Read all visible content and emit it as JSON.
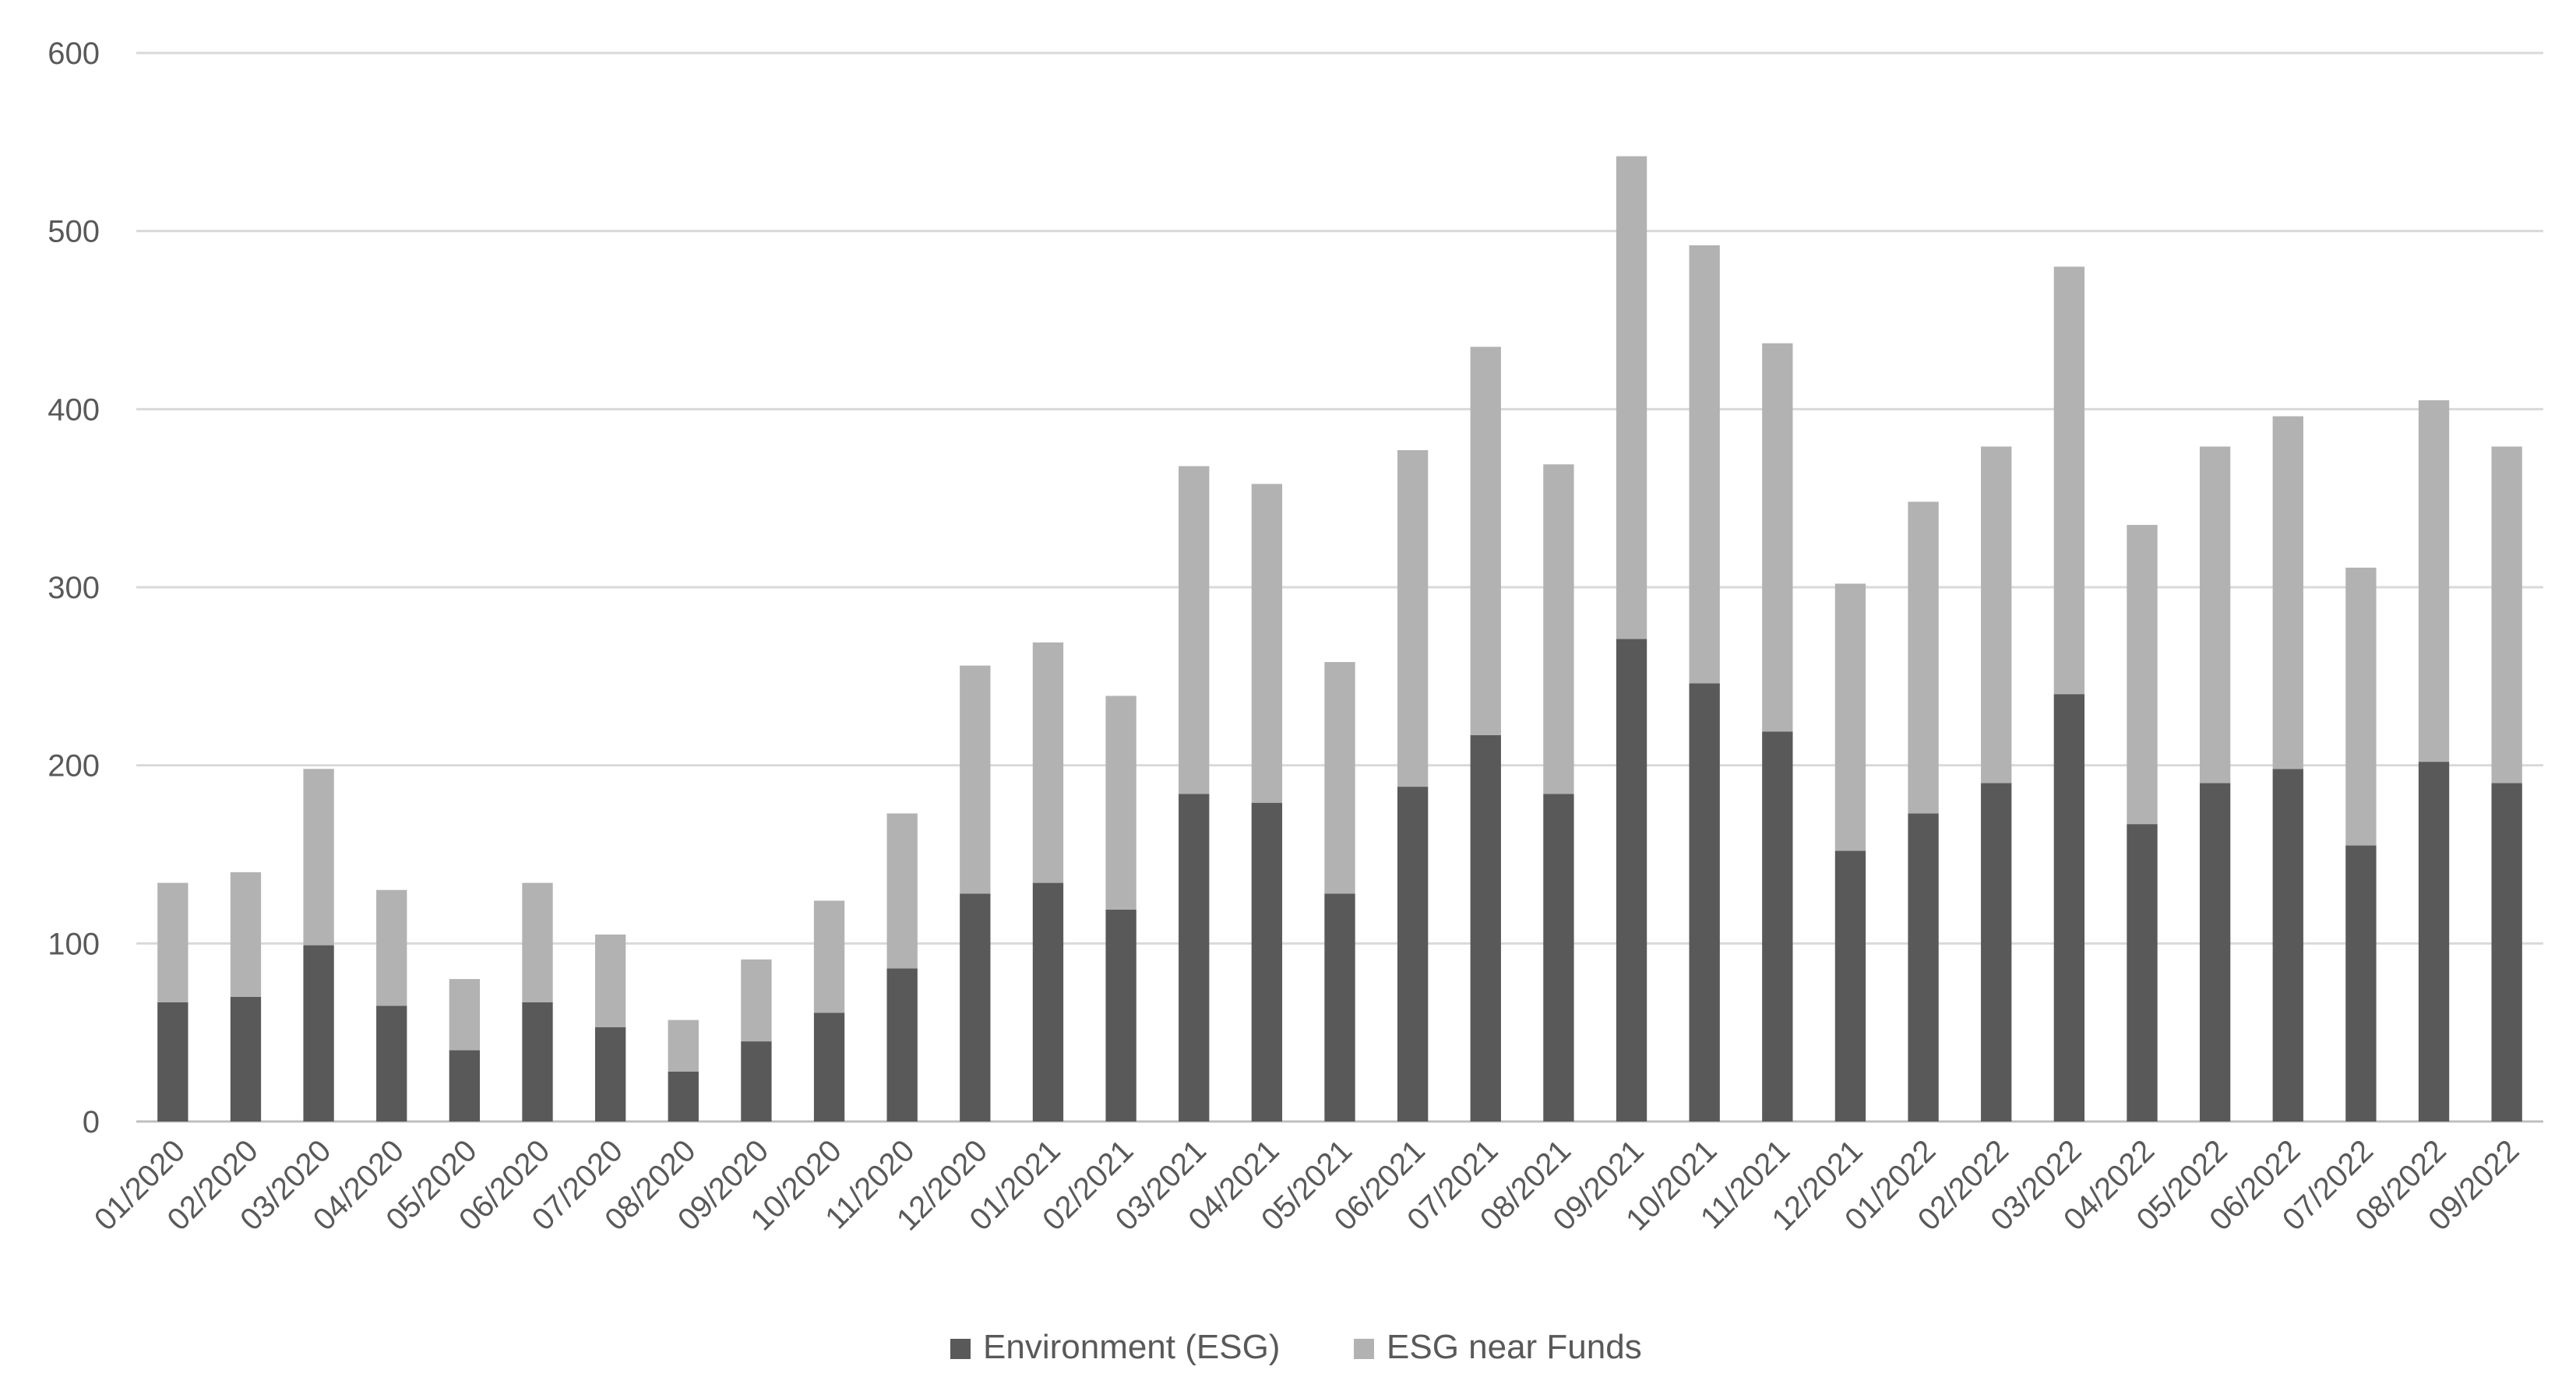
{
  "chart_data": {
    "type": "bar",
    "stacked": true,
    "title": "",
    "xlabel": "",
    "ylabel": "",
    "ylim": [
      0,
      600
    ],
    "yticks": [
      "0",
      "100",
      "200",
      "300",
      "400",
      "500",
      "600"
    ],
    "grid": true,
    "legend_position": "bottom",
    "categories": [
      "01/2020",
      "02/2020",
      "03/2020",
      "04/2020",
      "05/2020",
      "06/2020",
      "07/2020",
      "08/2020",
      "09/2020",
      "10/2020",
      "11/2020",
      "12/2020",
      "01/2021",
      "02/2021",
      "03/2021",
      "04/2021",
      "05/2021",
      "06/2021",
      "07/2021",
      "08/2021",
      "09/2021",
      "10/2021",
      "11/2021",
      "12/2021",
      "01/2022",
      "02/2022",
      "03/2022",
      "04/2022",
      "05/2022",
      "06/2022",
      "07/2022",
      "08/2022",
      "09/2022"
    ],
    "series": [
      {
        "name": "Environment (ESG)",
        "color": "#595959",
        "values": [
          67,
          70,
          99,
          65,
          40,
          67,
          53,
          28,
          45,
          61,
          86,
          128,
          134,
          119,
          184,
          179,
          128,
          188,
          217,
          184,
          271,
          246,
          219,
          152,
          173,
          190,
          240,
          167,
          190,
          198,
          155,
          202,
          190
        ]
      },
      {
        "name": "ESG near Funds",
        "color": "#b2b2b2",
        "values": [
          67,
          70,
          99,
          65,
          40,
          67,
          52,
          29,
          46,
          63,
          87,
          128,
          135,
          120,
          184,
          179,
          130,
          189,
          218,
          185,
          271,
          246,
          218,
          150,
          175,
          189,
          240,
          168,
          189,
          198,
          156,
          203,
          189
        ]
      }
    ]
  }
}
